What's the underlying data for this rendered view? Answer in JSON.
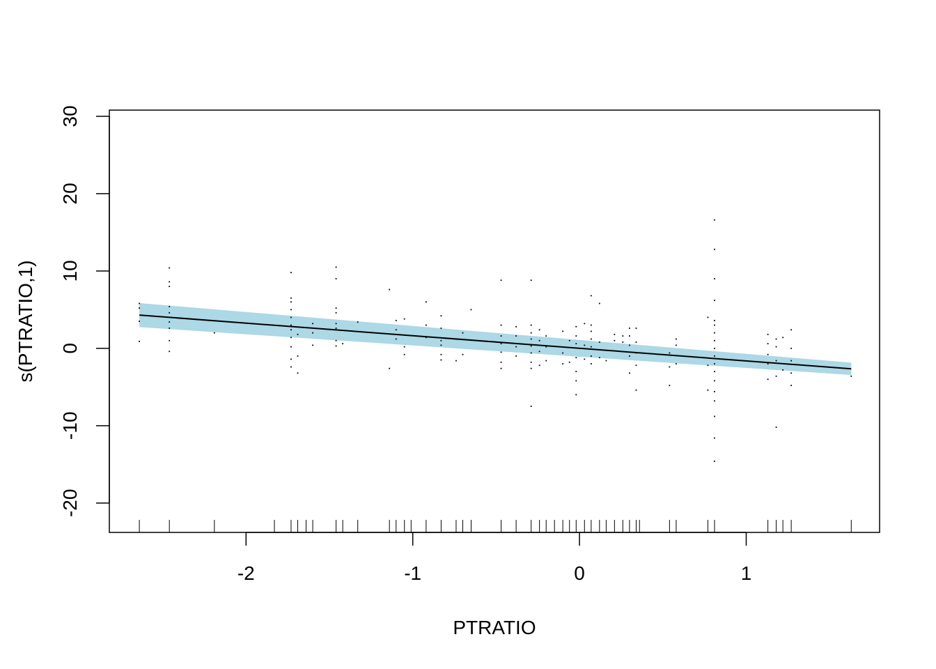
{
  "chart_data": {
    "type": "line",
    "title": "",
    "xlabel": "PTRATIO",
    "ylabel": "s(PTRATIO,1)",
    "xlim": [
      -2.82,
      1.8
    ],
    "ylim": [
      -23.8,
      30.8
    ],
    "x_ticks": [
      -2,
      -1,
      0,
      1
    ],
    "y_ticks": [
      -20,
      -10,
      0,
      10,
      20,
      30
    ],
    "grid": false,
    "legend": "none",
    "colors": {
      "band": "#add8e6",
      "line": "#000000",
      "points": "#000000",
      "rug": "#000000"
    },
    "series": [
      {
        "kind": "smooth",
        "x": [
          -2.64,
          1.63
        ],
        "y": [
          4.3,
          -2.65
        ],
        "upper": [
          5.85,
          -1.85
        ],
        "lower": [
          2.75,
          -3.45
        ]
      }
    ],
    "rug": [
      -2.64,
      -2.46,
      -2.19,
      -1.83,
      -1.73,
      -1.69,
      -1.64,
      -1.6,
      -1.46,
      -1.42,
      -1.33,
      -1.14,
      -1.1,
      -1.05,
      -1.01,
      -0.92,
      -0.83,
      -0.74,
      -0.7,
      -0.65,
      -0.47,
      -0.38,
      -0.29,
      -0.24,
      -0.2,
      -0.15,
      -0.1,
      -0.06,
      -0.02,
      0.03,
      0.07,
      0.12,
      0.16,
      0.21,
      0.26,
      0.3,
      0.34,
      0.36,
      0.54,
      0.58,
      0.77,
      0.81,
      1.13,
      1.18,
      1.22,
      1.27,
      1.63
    ],
    "residuals": [
      [
        -2.64,
        0.9
      ],
      [
        -2.64,
        3.5
      ],
      [
        -2.64,
        5.2
      ],
      [
        -2.64,
        5.8
      ],
      [
        -2.46,
        -0.4
      ],
      [
        -2.46,
        1.0
      ],
      [
        -2.46,
        2.6
      ],
      [
        -2.46,
        3.4
      ],
      [
        -2.46,
        4.6
      ],
      [
        -2.46,
        5.4
      ],
      [
        -2.46,
        8.0
      ],
      [
        -2.46,
        8.6
      ],
      [
        -2.46,
        10.4
      ],
      [
        -2.19,
        2.0
      ],
      [
        -1.73,
        -2.4
      ],
      [
        -1.73,
        -1.4
      ],
      [
        -1.73,
        0.2
      ],
      [
        -1.73,
        1.4
      ],
      [
        -1.73,
        2.4
      ],
      [
        -1.73,
        3.0
      ],
      [
        -1.73,
        4.0
      ],
      [
        -1.73,
        5.0
      ],
      [
        -1.73,
        6.0
      ],
      [
        -1.73,
        6.5
      ],
      [
        -1.73,
        9.8
      ],
      [
        -1.69,
        -3.2
      ],
      [
        -1.69,
        -1.0
      ],
      [
        -1.69,
        1.8
      ],
      [
        -1.6,
        0.4
      ],
      [
        -1.6,
        2.0
      ],
      [
        -1.6,
        3.2
      ],
      [
        -1.46,
        0.3
      ],
      [
        -1.46,
        1.0
      ],
      [
        -1.46,
        2.6
      ],
      [
        -1.46,
        3.2
      ],
      [
        -1.46,
        4.6
      ],
      [
        -1.46,
        5.2
      ],
      [
        -1.46,
        9.0
      ],
      [
        -1.46,
        10.5
      ],
      [
        -1.42,
        0.6
      ],
      [
        -1.33,
        3.4
      ],
      [
        -1.14,
        -2.6
      ],
      [
        -1.14,
        7.6
      ],
      [
        -1.1,
        1.2
      ],
      [
        -1.1,
        2.4
      ],
      [
        -1.1,
        3.6
      ],
      [
        -1.05,
        -0.8
      ],
      [
        -1.05,
        0.2
      ],
      [
        -1.05,
        3.8
      ],
      [
        -0.92,
        1.4
      ],
      [
        -0.92,
        3.0
      ],
      [
        -0.92,
        6.0
      ],
      [
        -0.83,
        -1.5
      ],
      [
        -0.83,
        -0.8
      ],
      [
        -0.83,
        0.4
      ],
      [
        -0.83,
        1.0
      ],
      [
        -0.83,
        2.6
      ],
      [
        -0.83,
        4.2
      ],
      [
        -0.74,
        -1.6
      ],
      [
        -0.74,
        1.2
      ],
      [
        -0.7,
        -0.8
      ],
      [
        -0.7,
        2.0
      ],
      [
        -0.65,
        5.0
      ],
      [
        -0.47,
        -2.6
      ],
      [
        -0.47,
        -1.8
      ],
      [
        -0.47,
        -0.5
      ],
      [
        -0.47,
        0.6
      ],
      [
        -0.47,
        1.6
      ],
      [
        -0.47,
        3.0
      ],
      [
        -0.47,
        8.8
      ],
      [
        -0.38,
        -1.0
      ],
      [
        -0.38,
        0.2
      ],
      [
        -0.38,
        1.6
      ],
      [
        -0.38,
        2.8
      ],
      [
        -0.29,
        -7.5
      ],
      [
        -0.29,
        -2.6
      ],
      [
        -0.29,
        -1.8
      ],
      [
        -0.29,
        -0.6
      ],
      [
        -0.29,
        0.3
      ],
      [
        -0.29,
        1.2
      ],
      [
        -0.29,
        2.0
      ],
      [
        -0.29,
        3.0
      ],
      [
        -0.29,
        8.8
      ],
      [
        -0.24,
        -2.2
      ],
      [
        -0.24,
        -0.4
      ],
      [
        -0.24,
        1.0
      ],
      [
        -0.24,
        2.4
      ],
      [
        -0.2,
        -1.6
      ],
      [
        -0.2,
        0.2
      ],
      [
        -0.2,
        1.6
      ],
      [
        -0.1,
        -2.0
      ],
      [
        -0.1,
        -0.6
      ],
      [
        -0.1,
        2.2
      ],
      [
        -0.06,
        -1.8
      ],
      [
        -0.06,
        1.0
      ],
      [
        -0.02,
        -6.0
      ],
      [
        -0.02,
        -4.2
      ],
      [
        -0.02,
        -3.0
      ],
      [
        -0.02,
        -1.2
      ],
      [
        -0.02,
        0.6
      ],
      [
        -0.02,
        1.6
      ],
      [
        -0.02,
        2.8
      ],
      [
        0.03,
        -1.4
      ],
      [
        0.03,
        0.4
      ],
      [
        0.03,
        3.2
      ],
      [
        0.07,
        -2.0
      ],
      [
        0.07,
        -1.0
      ],
      [
        0.07,
        0.2
      ],
      [
        0.07,
        1.2
      ],
      [
        0.07,
        2.2
      ],
      [
        0.07,
        3.0
      ],
      [
        0.07,
        6.8
      ],
      [
        0.12,
        -1.2
      ],
      [
        0.12,
        0.8
      ],
      [
        0.12,
        5.8
      ],
      [
        0.16,
        -1.6
      ],
      [
        0.21,
        1.0
      ],
      [
        0.21,
        1.8
      ],
      [
        0.26,
        0.8
      ],
      [
        0.26,
        1.6
      ],
      [
        0.3,
        -3.2
      ],
      [
        0.3,
        -1.0
      ],
      [
        0.3,
        0.4
      ],
      [
        0.3,
        1.6
      ],
      [
        0.3,
        2.6
      ],
      [
        0.34,
        -5.4
      ],
      [
        0.34,
        -2.2
      ],
      [
        0.34,
        -0.6
      ],
      [
        0.34,
        0.8
      ],
      [
        0.34,
        2.6
      ],
      [
        0.54,
        -4.8
      ],
      [
        0.54,
        -2.4
      ],
      [
        0.54,
        -0.6
      ],
      [
        0.58,
        -2.0
      ],
      [
        0.58,
        0.4
      ],
      [
        0.58,
        1.2
      ],
      [
        0.77,
        -5.4
      ],
      [
        0.77,
        -2.2
      ],
      [
        0.77,
        4.0
      ],
      [
        0.81,
        -14.6
      ],
      [
        0.81,
        -11.6
      ],
      [
        0.81,
        -8.8
      ],
      [
        0.81,
        -6.8
      ],
      [
        0.81,
        -5.6
      ],
      [
        0.81,
        -4.2
      ],
      [
        0.81,
        -3.0
      ],
      [
        0.81,
        -2.0
      ],
      [
        0.81,
        -1.0
      ],
      [
        0.81,
        0.0
      ],
      [
        0.81,
        1.0
      ],
      [
        0.81,
        2.0
      ],
      [
        0.81,
        3.0
      ],
      [
        0.81,
        3.6
      ],
      [
        0.81,
        6.2
      ],
      [
        0.81,
        9.0
      ],
      [
        0.81,
        12.8
      ],
      [
        0.81,
        16.6
      ],
      [
        1.13,
        -4.0
      ],
      [
        1.13,
        -2.0
      ],
      [
        1.13,
        -0.8
      ],
      [
        1.13,
        0.6
      ],
      [
        1.13,
        1.8
      ],
      [
        1.18,
        -10.2
      ],
      [
        1.18,
        -3.6
      ],
      [
        1.18,
        -1.6
      ],
      [
        1.18,
        0.2
      ],
      [
        1.18,
        1.2
      ],
      [
        1.22,
        -2.8
      ],
      [
        1.22,
        1.4
      ],
      [
        1.27,
        -4.8
      ],
      [
        1.27,
        -3.2
      ],
      [
        1.27,
        -1.6
      ],
      [
        1.27,
        0.0
      ],
      [
        1.27,
        2.4
      ],
      [
        1.63,
        -3.6
      ]
    ]
  }
}
